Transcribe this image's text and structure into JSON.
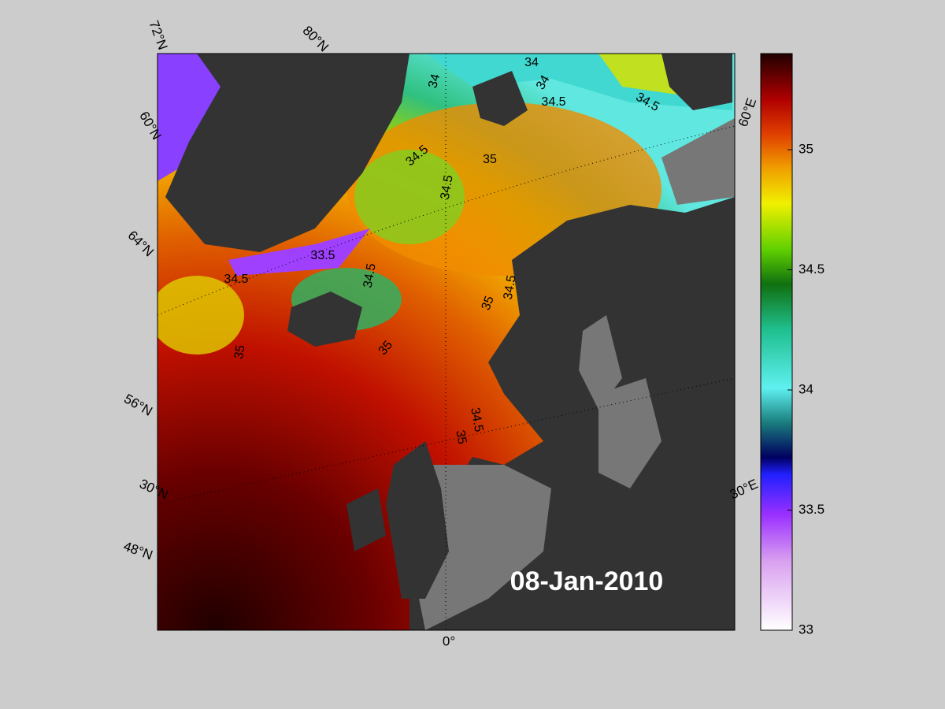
{
  "map": {
    "date": "08-Jan-2010",
    "grid_labels": [
      "72°N",
      "80°N",
      "60°N",
      "64°N",
      "56°N",
      "30°N",
      "48°N",
      "0°",
      "60°E",
      "30°E"
    ],
    "contour_labels": [
      "34",
      "34",
      "34",
      "34.5",
      "34.5",
      "34.5",
      "35",
      "34.5",
      "33.5",
      "34.5",
      "34.5",
      "34.5",
      "35",
      "35",
      "35",
      "34.5",
      "35"
    ]
  },
  "colorbar": {
    "clim": [
      33,
      35.4
    ],
    "ticks": [
      33,
      33.5,
      34,
      34.5,
      35
    ]
  }
}
